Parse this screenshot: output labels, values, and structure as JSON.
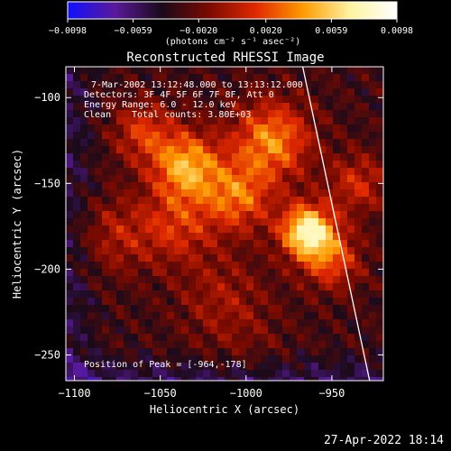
{
  "chart_data": {
    "type": "heatmap",
    "title": "Reconstructed RHESSI Image",
    "xlabel": "Heliocentric X (arcsec)",
    "ylabel": "Heliocentric Y (arcsec)",
    "xlim": [
      -1105,
      -920
    ],
    "ylim": [
      -265,
      -82
    ],
    "xticks": [
      -1100,
      -1050,
      -1000,
      -950
    ],
    "xtick_labels": [
      "−1100",
      "−1050",
      "−1000",
      "−950"
    ],
    "yticks": [
      -100,
      -150,
      -200,
      -250
    ],
    "ytick_labels": [
      "−100",
      "−150",
      "−200",
      "−250"
    ],
    "colorbar": {
      "min": -0.0098,
      "max": 0.0098,
      "ticks": [
        -0.0098,
        -0.0059,
        -0.002,
        0.002,
        0.0059,
        0.0098
      ],
      "tick_labels": [
        "−0.0098",
        "−0.0059",
        "−0.0020",
        "0.0020",
        "0.0059",
        "0.0098"
      ],
      "unit_label": "(photons cm⁻² s⁻¹ asec⁻²)",
      "colors": [
        "#1010ff",
        "#5a1a9a",
        "#1a0a1a",
        "#7a0a00",
        "#e02800",
        "#ff9a00",
        "#fff3a0",
        "#ffffff"
      ]
    },
    "annotations": {
      "time_range": "7-Mar-2002 13:12:48.000 to 13:13:12.000",
      "detectors": "Detectors: 3F 4F 5F 6F 7F 8F, Att 0",
      "energy": "Energy Range: 6.0 - 12.0 keV",
      "clean_label": "Clean",
      "counts": "Total counts: 3.80E+03",
      "peak": "Position of Peak = [-964,-178]"
    },
    "peak_position": [
      -964,
      -178
    ],
    "limb_points": [
      [
        -967,
        -82
      ],
      [
        -928,
        -265
      ]
    ],
    "grid": false,
    "footer_date": "27-Apr-2022 18:14"
  }
}
